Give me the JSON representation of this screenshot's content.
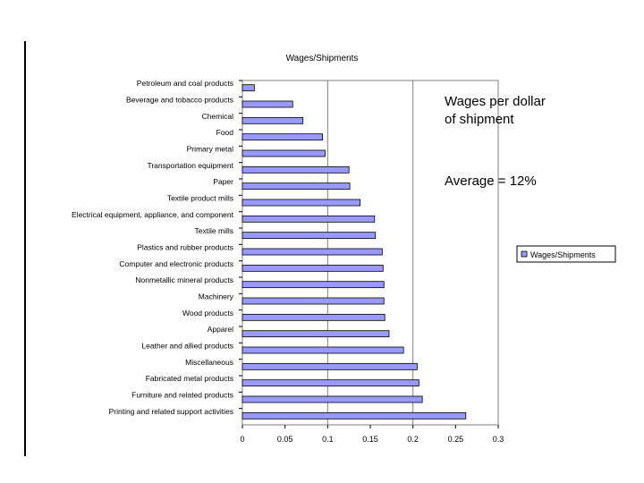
{
  "slide": {
    "note_line1": "Wages per dollar",
    "note_line2": "of shipment",
    "average_note": "Average = 12%"
  },
  "chart_data": {
    "type": "bar",
    "orientation": "horizontal",
    "title": "Wages/Shipments",
    "xlabel": "",
    "ylabel": "",
    "xlim": [
      0,
      0.3
    ],
    "xticks": [
      0,
      0.05,
      0.1,
      0.15,
      0.2,
      0.25,
      0.3
    ],
    "xtick_labels": [
      "0",
      "0.05",
      "0.1",
      "0.15",
      "0.2",
      "0.25",
      "0.3"
    ],
    "gridlines": [
      0.1,
      0.2
    ],
    "legend": {
      "position": "right",
      "label": "Wages/Shipments"
    },
    "bar_color": "#9999FF",
    "categories": [
      "Petroleum and coal products",
      "Beverage and tobacco products",
      "Chemical",
      "Food",
      "Primary metal",
      "Transportation equipment",
      "Paper",
      "Textile product mills",
      "Electrical equipment, appliance, and component",
      "Textile mills",
      "Plastics and rubber products",
      "Computer and electronic products",
      "Nonmetallic mineral products",
      "Machinery",
      "Wood products",
      "Apparel",
      "Leather and allied products",
      "Miscellaneous",
      "Fabricated metal products",
      "Furniture and related products",
      "Printing and related support activities"
    ],
    "series": [
      {
        "name": "Wages/Shipments",
        "values": [
          0.014,
          0.059,
          0.071,
          0.094,
          0.097,
          0.125,
          0.126,
          0.138,
          0.155,
          0.156,
          0.164,
          0.165,
          0.166,
          0.166,
          0.167,
          0.172,
          0.189,
          0.205,
          0.207,
          0.211,
          0.262
        ]
      }
    ]
  }
}
